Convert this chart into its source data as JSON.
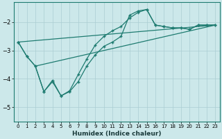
{
  "xlabel": "Humidex (Indice chaleur)",
  "bg_color": "#cce8ea",
  "grid_color": "#aacdd2",
  "line_color": "#1e7b70",
  "spine_color": "#1e7b70",
  "xlim": [
    -0.5,
    23.5
  ],
  "ylim": [
    -5.5,
    -1.3
  ],
  "yticks": [
    -5,
    -4,
    -3,
    -2
  ],
  "xticks": [
    0,
    1,
    2,
    3,
    4,
    5,
    6,
    7,
    8,
    9,
    10,
    11,
    12,
    13,
    14,
    15,
    16,
    17,
    18,
    19,
    20,
    21,
    22,
    23
  ],
  "line1_x": [
    0,
    1,
    2,
    3,
    4,
    5,
    6,
    7,
    8,
    9,
    10,
    11,
    12,
    13,
    14,
    15,
    16,
    17,
    18,
    19,
    20,
    21,
    22,
    23
  ],
  "line1_y": [
    -2.7,
    -3.2,
    -3.55,
    -4.45,
    -4.1,
    -4.6,
    -4.45,
    -4.1,
    -3.55,
    -3.15,
    -2.85,
    -2.7,
    -2.5,
    -1.75,
    -1.6,
    -1.55,
    -2.1,
    -2.15,
    -2.2,
    -2.2,
    -2.25,
    -2.1,
    -2.1,
    -2.1
  ],
  "line2_x": [
    0,
    1,
    2,
    3,
    4,
    5,
    6,
    7,
    8,
    9,
    10,
    11,
    12,
    13,
    14,
    15,
    16,
    17,
    18,
    19,
    20,
    21,
    22,
    23
  ],
  "line2_y": [
    -2.7,
    -3.2,
    -3.55,
    -4.45,
    -4.05,
    -4.6,
    -4.42,
    -3.85,
    -3.3,
    -2.8,
    -2.5,
    -2.3,
    -2.15,
    -1.85,
    -1.65,
    -1.55,
    -2.1,
    -2.15,
    -2.2,
    -2.2,
    -2.25,
    -2.1,
    -2.1,
    -2.1
  ],
  "trend1_x": [
    0,
    23
  ],
  "trend1_y": [
    -2.7,
    -2.1
  ],
  "trend2_x": [
    2,
    23
  ],
  "trend2_y": [
    -3.55,
    -2.1
  ],
  "xlabel_fontsize": 6.5,
  "tick_fontsize": 5.0
}
